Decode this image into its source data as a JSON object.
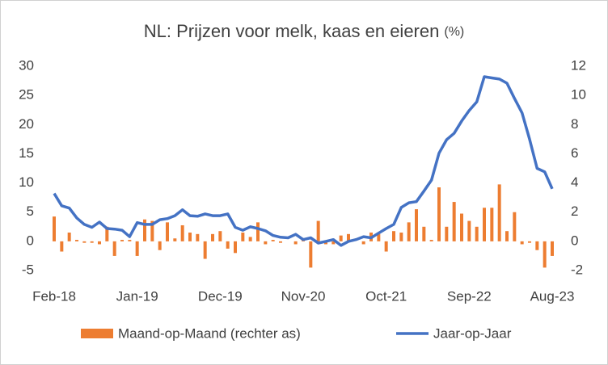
{
  "chart_data": {
    "type": "combo",
    "title": "NL: Prijzen voor melk, kaas en eieren",
    "title_unit": "(%)",
    "categories": [
      "Feb-18",
      null,
      null,
      null,
      null,
      null,
      null,
      null,
      null,
      null,
      null,
      "Jan-19",
      null,
      null,
      null,
      null,
      null,
      null,
      null,
      null,
      null,
      null,
      "Dec-19",
      null,
      null,
      null,
      null,
      null,
      null,
      null,
      null,
      null,
      null,
      "Nov-20",
      null,
      null,
      null,
      null,
      null,
      null,
      null,
      null,
      null,
      null,
      "Oct-21",
      null,
      null,
      null,
      null,
      null,
      null,
      null,
      null,
      null,
      null,
      "Sep-22",
      null,
      null,
      null,
      null,
      null,
      null,
      null,
      null,
      null,
      null,
      "Aug-23"
    ],
    "ylim": [
      -5,
      30
    ],
    "yticks": [
      -5,
      0,
      5,
      10,
      15,
      20,
      25,
      30
    ],
    "y2lim": [
      -2,
      12
    ],
    "y2ticks": [
      -2,
      0,
      2,
      4,
      6,
      8,
      10,
      12
    ],
    "legend": "bottom",
    "series": [
      {
        "name": "Maand-op-Maand (rechter as)",
        "type": "bar",
        "axis": "y2",
        "color": "#ED7D31",
        "values": [
          1.7,
          -0.7,
          0.6,
          0.1,
          -0.1,
          -0.1,
          -0.2,
          1.0,
          -1.0,
          0.1,
          0.1,
          -1.0,
          1.5,
          1.4,
          -0.6,
          1.3,
          0.2,
          1.1,
          0.6,
          0.5,
          -1.2,
          0.5,
          0.7,
          -0.5,
          -0.8,
          0.6,
          0.3,
          1.3,
          -0.2,
          0.1,
          -0.1,
          0,
          -0.2,
          0.2,
          -1.8,
          1.4,
          -0.2,
          -0.2,
          0.4,
          0.5,
          0,
          -0.2,
          0.6,
          0.5,
          -0.7,
          0.7,
          0.6,
          1.3,
          2.2,
          1.0,
          0.1,
          3.7,
          1.0,
          2.7,
          1.9,
          1.4,
          1.0,
          2.3,
          2.3,
          3.9,
          0.7,
          2.0,
          -0.2,
          -0.1,
          -0.6,
          -1.8,
          -1.0
        ]
      },
      {
        "name": "Jaar-op-Jaar",
        "type": "line",
        "color": "#4472C4",
        "values": [
          8.2,
          6.1,
          5.7,
          4.0,
          2.9,
          2.4,
          3.3,
          2.2,
          2.1,
          1.9,
          0.8,
          3.2,
          2.9,
          2.9,
          3.7,
          3.9,
          4.4,
          5.4,
          4.4,
          4.3,
          4.7,
          4.4,
          4.4,
          4.7,
          2.4,
          1.9,
          2.5,
          2.2,
          1.8,
          1.0,
          0.7,
          0.6,
          1.2,
          0.3,
          0.6,
          -0.3,
          0.0,
          0.3,
          -0.7,
          0.0,
          0.3,
          0.8,
          0.6,
          1.4,
          2.2,
          2.9,
          5.8,
          6.6,
          6.8,
          8.6,
          10.5,
          15.1,
          17.4,
          18.5,
          20.6,
          22.4,
          23.9,
          28.2,
          28.0,
          27.8,
          27.1,
          24.5,
          22.0,
          17.5,
          12.5,
          11.9,
          9.0
        ]
      }
    ]
  }
}
